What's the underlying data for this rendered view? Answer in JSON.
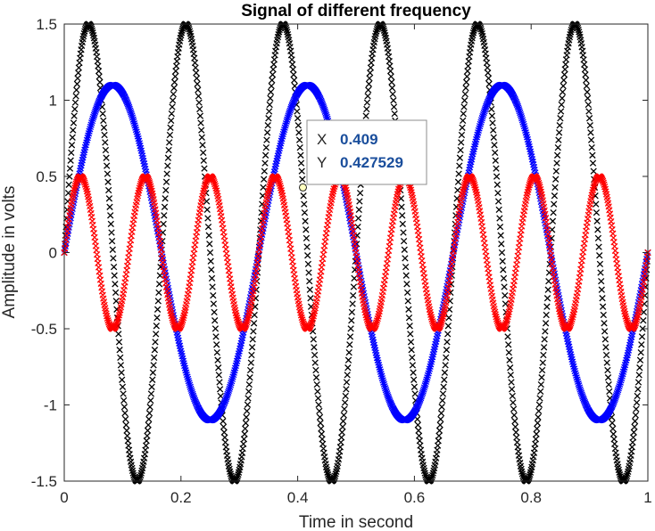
{
  "chart_data": {
    "type": "line",
    "title": "Signal of different frequency",
    "xlabel": "Time in second",
    "ylabel": "Amplitude in volts",
    "xlim": [
      0,
      1
    ],
    "ylim": [
      -1.5,
      1.5
    ],
    "xticks": [
      0,
      0.2,
      0.4,
      0.6,
      0.8,
      1
    ],
    "xtick_labels": [
      "0",
      "0.2",
      "0.4",
      "0.6",
      "0.8",
      "1"
    ],
    "yticks": [
      1.5,
      1,
      0.5,
      0,
      -0.5,
      -1,
      -1.5
    ],
    "ytick_labels": [
      "1.5",
      "1",
      "0.5",
      "0",
      "-0.5",
      "-1",
      "-1.5"
    ],
    "grid": false,
    "marker": "x",
    "sample_step": 0.001,
    "series": [
      {
        "amplitude": 1.5,
        "frequency": 6,
        "color": "#000000"
      },
      {
        "amplitude": 1.1,
        "frequency": 3,
        "color": "#0000ff"
      },
      {
        "amplitude": 0.5,
        "frequency": 9,
        "color": "#ff0000"
      }
    ],
    "datatip": {
      "x_key": "X",
      "x_value": "0.409",
      "y_key": "Y",
      "y_value": "0.427529"
    }
  }
}
